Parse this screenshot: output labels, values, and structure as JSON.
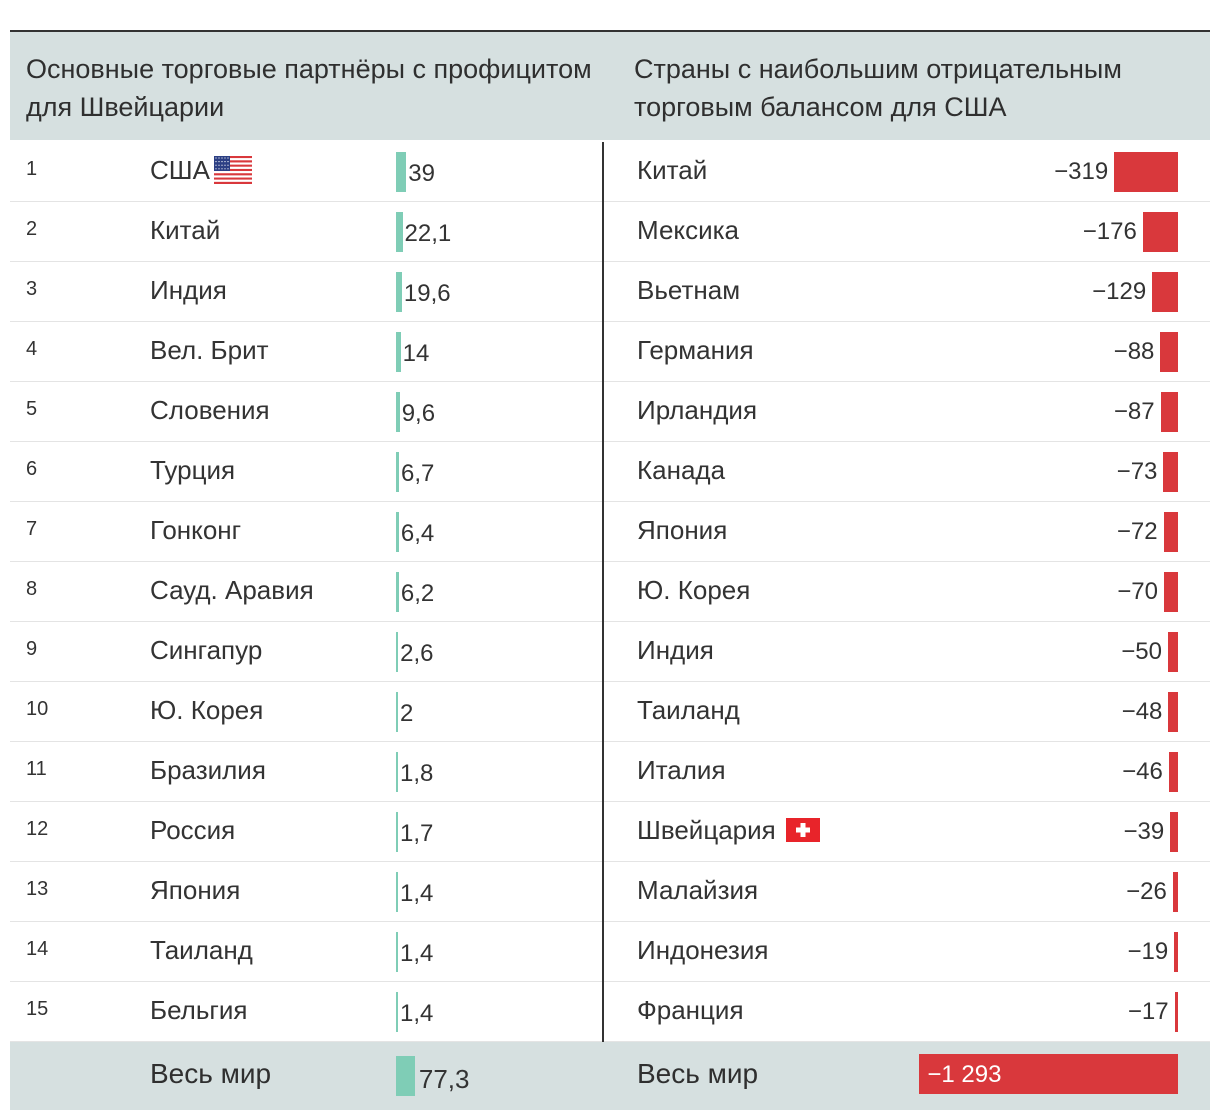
{
  "header": {
    "left_title": "Основные торговые партнёры с профицитом для Швейцарии",
    "right_title": "Страны с наибольшим отрицательным торговым балансом для США"
  },
  "chart_data": [
    {
      "type": "bar",
      "title": "Основные торговые партнёры с профицитом для Швейцарии",
      "ranks": [
        "1",
        "2",
        "3",
        "4",
        "5",
        "6",
        "7",
        "8",
        "9",
        "10",
        "11",
        "12",
        "13",
        "14",
        "15"
      ],
      "categories": [
        "США",
        "Китай",
        "Индия",
        "Вел. Брит",
        "Словения",
        "Турция",
        "Гонконг",
        "Сауд. Аравия",
        "Сингапур",
        "Ю. Корея",
        "Бразилия",
        "Россия",
        "Япония",
        "Таиланд",
        "Бельгия"
      ],
      "values": [
        39,
        22.1,
        19.6,
        14,
        9.6,
        6.7,
        6.4,
        6.2,
        2.6,
        2,
        1.8,
        1.7,
        1.4,
        1.4,
        1.4
      ],
      "value_labels": [
        "39",
        "22,1",
        "19,6",
        "14",
        "9,6",
        "6,7",
        "6,4",
        "6,2",
        "2,6",
        "2",
        "1,8",
        "1,7",
        "1,4",
        "1,4",
        "1,4"
      ],
      "total": {
        "label": "Весь мир",
        "value": 77.3,
        "value_label": "77,3"
      },
      "color": "#7fcdb6"
    },
    {
      "type": "bar",
      "title": "Страны с наибольшим отрицательным торговым балансом для США",
      "categories": [
        "Китай",
        "Мексика",
        "Вьетнам",
        "Германия",
        "Ирландия",
        "Канада",
        "Япония",
        "Ю. Корея",
        "Индия",
        "Таиланд",
        "Италия",
        "Швейцария",
        "Малайзия",
        "Индонезия",
        "Франция"
      ],
      "values": [
        -319,
        -176,
        -129,
        -88,
        -87,
        -73,
        -72,
        -70,
        -50,
        -48,
        -46,
        -39,
        -26,
        -19,
        -17
      ],
      "value_labels": [
        "−319",
        "−176",
        "−129",
        "−88",
        "−87",
        "−73",
        "−72",
        "−70",
        "−50",
        "−48",
        "−46",
        "−39",
        "−26",
        "−19",
        "−17"
      ],
      "total": {
        "label": "Весь мир",
        "value": -1293,
        "value_label": "−1 293"
      },
      "color": "#d9383c"
    }
  ],
  "icons": {
    "us": "us-flag-icon",
    "ch": "swiss-flag-icon"
  }
}
